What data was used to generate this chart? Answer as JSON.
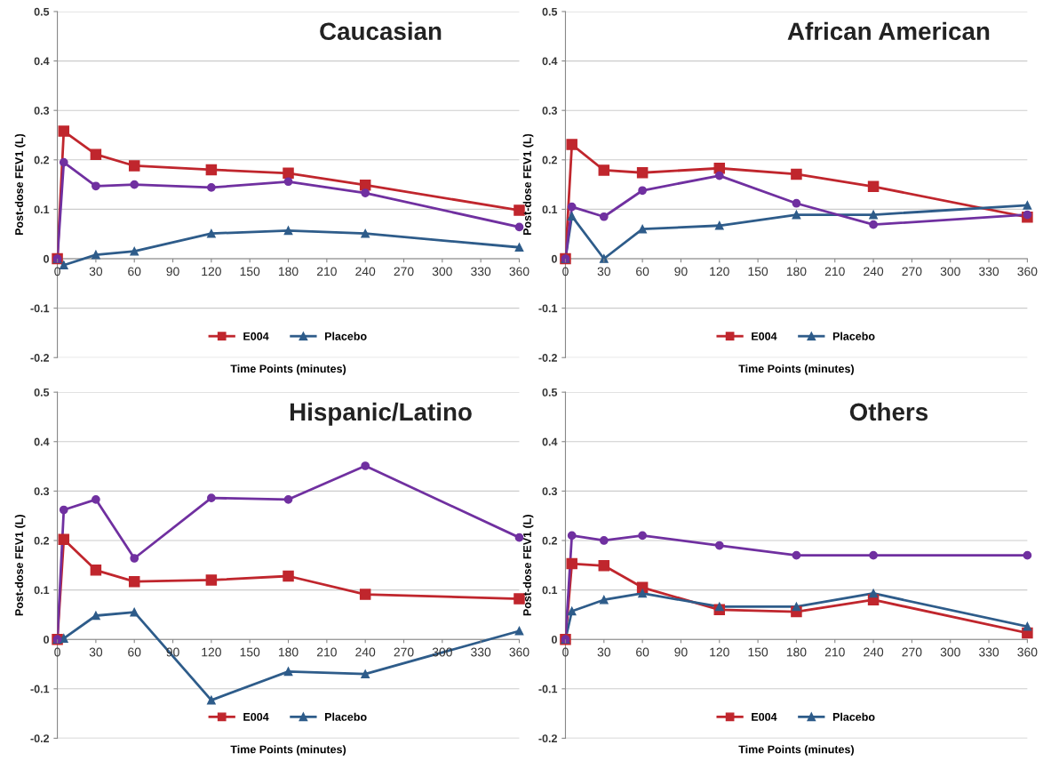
{
  "chart_data": [
    {
      "type": "line",
      "title": "Caucasian",
      "xlabel": "Time Points (minutes)",
      "ylabel": "Post-dose FEV1 (L)",
      "x": [
        0,
        5,
        30,
        60,
        120,
        180,
        240,
        360
      ],
      "xlim": [
        0,
        360
      ],
      "xticks": [
        0,
        30,
        60,
        90,
        120,
        150,
        180,
        210,
        240,
        270,
        300,
        330,
        360
      ],
      "ylim": [
        -0.2,
        0.5
      ],
      "yticks": [
        -0.2,
        -0.1,
        0,
        0.1,
        0.2,
        0.3,
        0.4,
        0.5
      ],
      "grid": "y",
      "legend": "bottom",
      "series": [
        {
          "name": "E004",
          "color": "#c0262d",
          "marker": "square",
          "values": [
            0,
            0.258,
            0.211,
            0.188,
            0.18,
            0.173,
            0.149,
            0.098
          ]
        },
        {
          "name": "Placebo",
          "color": "#2e5c8a",
          "marker": "triangle",
          "values": [
            0,
            -0.013,
            0.008,
            0.015,
            0.051,
            0.057,
            0.051,
            0.023
          ]
        },
        {
          "color": "#7030a0",
          "marker": "circle",
          "values": [
            0,
            0.195,
            0.147,
            0.15,
            0.144,
            0.156,
            0.133,
            0.064
          ]
        }
      ]
    },
    {
      "type": "line",
      "title": "African American",
      "xlabel": "Time Points (minutes)",
      "ylabel": "Post-dose FEV1 (L)",
      "x": [
        0,
        5,
        30,
        60,
        120,
        180,
        240,
        360
      ],
      "xlim": [
        0,
        360
      ],
      "xticks": [
        0,
        30,
        60,
        90,
        120,
        150,
        180,
        210,
        240,
        270,
        300,
        330,
        360
      ],
      "ylim": [
        -0.2,
        0.5
      ],
      "yticks": [
        -0.2,
        -0.1,
        0,
        0.1,
        0.2,
        0.3,
        0.4,
        0.5
      ],
      "grid": "y",
      "legend": "bottom",
      "series": [
        {
          "name": "E004",
          "color": "#c0262d",
          "marker": "square",
          "values": [
            0,
            0.231,
            0.179,
            0.174,
            0.183,
            0.171,
            0.146,
            0.084
          ]
        },
        {
          "name": "Placebo",
          "color": "#2e5c8a",
          "marker": "triangle",
          "values": [
            0,
            0.086,
            0.0,
            0.06,
            0.067,
            0.089,
            0.089,
            0.108
          ]
        },
        {
          "color": "#7030a0",
          "marker": "circle",
          "values": [
            0,
            0.105,
            0.085,
            0.138,
            0.168,
            0.112,
            0.069,
            0.089
          ]
        }
      ]
    },
    {
      "type": "line",
      "title": "Hispanic/Latino",
      "xlabel": "Time Points (minutes)",
      "ylabel": "Post-dose FEV1 (L)",
      "x": [
        0,
        5,
        30,
        60,
        120,
        180,
        240,
        360
      ],
      "xlim": [
        0,
        360
      ],
      "xticks": [
        0,
        30,
        60,
        90,
        120,
        150,
        180,
        210,
        240,
        270,
        300,
        330,
        360
      ],
      "ylim": [
        -0.2,
        0.5
      ],
      "yticks": [
        -0.2,
        -0.1,
        0,
        0.1,
        0.2,
        0.3,
        0.4,
        0.5
      ],
      "grid": "y",
      "legend": "bottom",
      "series": [
        {
          "name": "E004",
          "color": "#c0262d",
          "marker": "square",
          "values": [
            0,
            0.202,
            0.14,
            0.117,
            0.12,
            0.128,
            0.091,
            0.082
          ]
        },
        {
          "name": "Placebo",
          "color": "#2e5c8a",
          "marker": "triangle",
          "values": [
            0,
            0.002,
            0.048,
            0.055,
            -0.123,
            -0.065,
            -0.07,
            0.017
          ]
        },
        {
          "color": "#7030a0",
          "marker": "circle",
          "values": [
            0,
            0.262,
            0.283,
            0.164,
            0.286,
            0.283,
            0.351,
            0.206
          ]
        }
      ]
    },
    {
      "type": "line",
      "title": "Others",
      "xlabel": "Time Points (minutes)",
      "ylabel": "Post-dose FEV1 (L)",
      "x": [
        0,
        5,
        30,
        60,
        120,
        180,
        240,
        360
      ],
      "xlim": [
        0,
        360
      ],
      "xticks": [
        0,
        30,
        60,
        90,
        120,
        150,
        180,
        210,
        240,
        270,
        300,
        330,
        360
      ],
      "ylim": [
        -0.2,
        0.5
      ],
      "yticks": [
        -0.2,
        -0.1,
        0,
        0.1,
        0.2,
        0.3,
        0.4,
        0.5
      ],
      "grid": "y",
      "legend": "bottom",
      "series": [
        {
          "name": "E004",
          "color": "#c0262d",
          "marker": "square",
          "values": [
            0,
            0.153,
            0.149,
            0.105,
            0.06,
            0.056,
            0.08,
            0.013
          ]
        },
        {
          "name": "Placebo",
          "color": "#2e5c8a",
          "marker": "triangle",
          "values": [
            0,
            0.057,
            0.08,
            0.093,
            0.066,
            0.066,
            0.093,
            0.026
          ]
        },
        {
          "color": "#7030a0",
          "marker": "circle",
          "values": [
            0,
            0.21,
            0.2,
            0.21,
            0.19,
            0.17,
            0.17,
            0.17
          ]
        }
      ]
    }
  ]
}
